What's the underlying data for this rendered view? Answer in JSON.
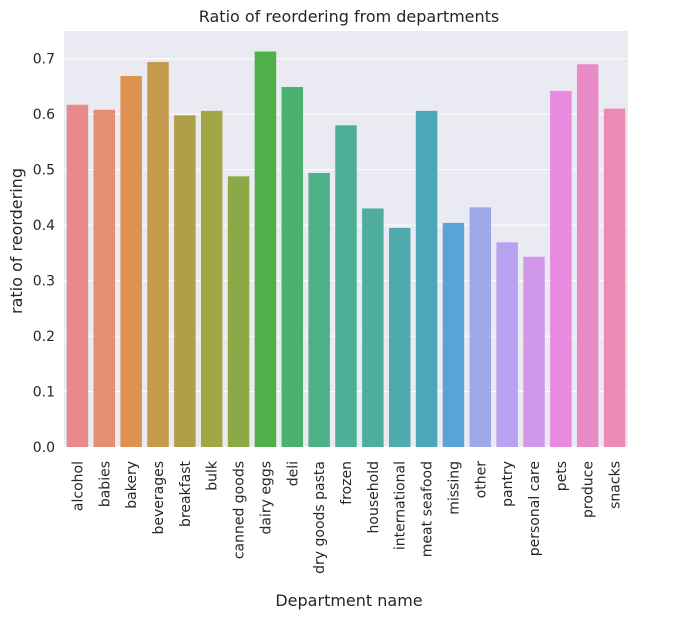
{
  "chart_data": {
    "type": "bar",
    "title": "Ratio of reordering from departments",
    "xlabel": "Department name",
    "ylabel": "ratio of reordering",
    "ylim": [
      0,
      0.75
    ],
    "yticks": [
      "0.0",
      "0.1",
      "0.2",
      "0.3",
      "0.4",
      "0.5",
      "0.6",
      "0.7"
    ],
    "grid": true,
    "legend": "none",
    "categories": [
      "alcohol",
      "babies",
      "bakery",
      "beverages",
      "breakfast",
      "bulk",
      "canned goods",
      "dairy eggs",
      "deli",
      "dry goods pasta",
      "frozen",
      "household",
      "international",
      "meat seafood",
      "missing",
      "other",
      "pantry",
      "personal care",
      "pets",
      "produce",
      "snacks"
    ],
    "values": [
      0.617,
      0.608,
      0.669,
      0.694,
      0.598,
      0.606,
      0.488,
      0.713,
      0.649,
      0.494,
      0.58,
      0.43,
      0.395,
      0.606,
      0.404,
      0.432,
      0.369,
      0.343,
      0.642,
      0.69,
      0.61
    ],
    "colors": [
      "#e8898e",
      "#e48f74",
      "#de924f",
      "#c49a4c",
      "#b09f49",
      "#a3a547",
      "#8da945",
      "#4faf48",
      "#4bb06c",
      "#4db087",
      "#4eaf97",
      "#4ead9e",
      "#4fabab",
      "#4ea7b9",
      "#58a3d8",
      "#9da9e8",
      "#b8a1ee",
      "#d198ea",
      "#e88ade",
      "#e98bc6",
      "#e98bb4"
    ],
    "background_color": "#eaeaf2"
  }
}
